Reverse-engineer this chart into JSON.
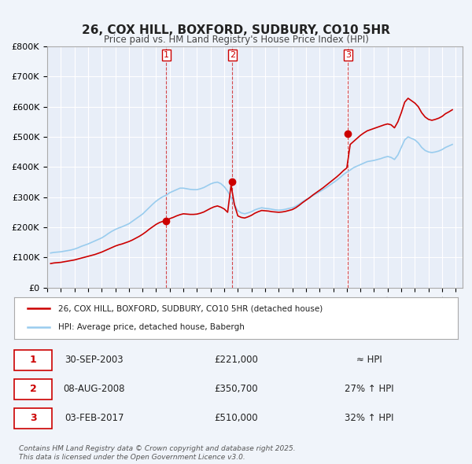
{
  "title": "26, COX HILL, BOXFORD, SUDBURY, CO10 5HR",
  "subtitle": "Price paid vs. HM Land Registry's House Price Index (HPI)",
  "bg_color": "#f0f4fa",
  "plot_bg_color": "#e8eef8",
  "grid_color": "#ffffff",
  "red_color": "#cc0000",
  "blue_color": "#99ccee",
  "xlabel": "",
  "ylabel": "",
  "ylim": [
    0,
    800000
  ],
  "yticks": [
    0,
    100000,
    200000,
    300000,
    400000,
    500000,
    600000,
    700000,
    800000
  ],
  "ytick_labels": [
    "£0",
    "£100K",
    "£200K",
    "£300K",
    "£400K",
    "£500K",
    "£600K",
    "£700K",
    "£800K"
  ],
  "xlim_start": 1995.0,
  "xlim_end": 2025.5,
  "xticks": [
    1995,
    1996,
    1997,
    1998,
    1999,
    2000,
    2001,
    2002,
    2003,
    2004,
    2005,
    2006,
    2007,
    2008,
    2009,
    2010,
    2011,
    2012,
    2013,
    2014,
    2015,
    2016,
    2017,
    2018,
    2019,
    2020,
    2021,
    2022,
    2023,
    2024,
    2025
  ],
  "sale_dates": [
    2003.747,
    2008.594,
    2017.089
  ],
  "sale_prices": [
    221000,
    350700,
    510000
  ],
  "sale_labels": [
    "1",
    "2",
    "3"
  ],
  "legend_entries": [
    "26, COX HILL, BOXFORD, SUDBURY, CO10 5HR (detached house)",
    "HPI: Average price, detached house, Babergh"
  ],
  "table_rows": [
    [
      "1",
      "30-SEP-2003",
      "£221,000",
      "≈ HPI"
    ],
    [
      "2",
      "08-AUG-2008",
      "£350,700",
      "27% ↑ HPI"
    ],
    [
      "3",
      "03-FEB-2017",
      "£510,000",
      "32% ↑ HPI"
    ]
  ],
  "footer": "Contains HM Land Registry data © Crown copyright and database right 2025.\nThis data is licensed under the Open Government Licence v3.0.",
  "hpi_series": {
    "dates": [
      1995.25,
      1995.5,
      1995.75,
      1996.0,
      1996.25,
      1996.5,
      1996.75,
      1997.0,
      1997.25,
      1997.5,
      1997.75,
      1998.0,
      1998.25,
      1998.5,
      1998.75,
      1999.0,
      1999.25,
      1999.5,
      1999.75,
      2000.0,
      2000.25,
      2000.5,
      2000.75,
      2001.0,
      2001.25,
      2001.5,
      2001.75,
      2002.0,
      2002.25,
      2002.5,
      2002.75,
      2003.0,
      2003.25,
      2003.5,
      2003.75,
      2004.0,
      2004.25,
      2004.5,
      2004.75,
      2005.0,
      2005.25,
      2005.5,
      2005.75,
      2006.0,
      2006.25,
      2006.5,
      2006.75,
      2007.0,
      2007.25,
      2007.5,
      2007.75,
      2008.0,
      2008.25,
      2008.5,
      2008.75,
      2009.0,
      2009.25,
      2009.5,
      2009.75,
      2010.0,
      2010.25,
      2010.5,
      2010.75,
      2011.0,
      2011.25,
      2011.5,
      2011.75,
      2012.0,
      2012.25,
      2012.5,
      2012.75,
      2013.0,
      2013.25,
      2013.5,
      2013.75,
      2014.0,
      2014.25,
      2014.5,
      2014.75,
      2015.0,
      2015.25,
      2015.5,
      2015.75,
      2016.0,
      2016.25,
      2016.5,
      2016.75,
      2017.0,
      2017.25,
      2017.5,
      2017.75,
      2018.0,
      2018.25,
      2018.5,
      2018.75,
      2019.0,
      2019.25,
      2019.5,
      2019.75,
      2020.0,
      2020.25,
      2020.5,
      2020.75,
      2021.0,
      2021.25,
      2021.5,
      2021.75,
      2022.0,
      2022.25,
      2022.5,
      2022.75,
      2023.0,
      2023.25,
      2023.5,
      2023.75,
      2024.0,
      2024.25,
      2024.5,
      2024.75
    ],
    "values": [
      115000,
      117000,
      118000,
      119000,
      121000,
      123000,
      125000,
      128000,
      132000,
      137000,
      141000,
      145000,
      150000,
      155000,
      160000,
      165000,
      172000,
      180000,
      187000,
      193000,
      198000,
      202000,
      207000,
      212000,
      220000,
      228000,
      236000,
      244000,
      255000,
      266000,
      277000,
      287000,
      295000,
      302000,
      307000,
      315000,
      320000,
      325000,
      330000,
      330000,
      328000,
      326000,
      325000,
      325000,
      328000,
      332000,
      338000,
      344000,
      348000,
      350000,
      345000,
      335000,
      320000,
      300000,
      275000,
      255000,
      248000,
      245000,
      248000,
      252000,
      258000,
      262000,
      265000,
      263000,
      262000,
      260000,
      258000,
      257000,
      258000,
      260000,
      263000,
      265000,
      270000,
      277000,
      285000,
      292000,
      298000,
      305000,
      312000,
      318000,
      325000,
      332000,
      340000,
      348000,
      356000,
      365000,
      375000,
      383000,
      390000,
      398000,
      403000,
      408000,
      413000,
      418000,
      420000,
      422000,
      425000,
      428000,
      432000,
      435000,
      432000,
      425000,
      440000,
      465000,
      490000,
      500000,
      495000,
      490000,
      480000,
      465000,
      455000,
      450000,
      448000,
      450000,
      453000,
      458000,
      465000,
      470000,
      475000
    ]
  },
  "price_series": {
    "dates": [
      1995.25,
      1995.5,
      1995.75,
      1996.0,
      1996.25,
      1996.5,
      1996.75,
      1997.0,
      1997.25,
      1997.5,
      1997.75,
      1998.0,
      1998.25,
      1998.5,
      1998.75,
      1999.0,
      1999.25,
      1999.5,
      1999.75,
      2000.0,
      2000.25,
      2000.5,
      2000.75,
      2001.0,
      2001.25,
      2001.5,
      2001.75,
      2002.0,
      2002.25,
      2002.5,
      2002.75,
      2003.0,
      2003.25,
      2003.5,
      2003.75,
      2004.0,
      2004.25,
      2004.5,
      2004.75,
      2005.0,
      2005.25,
      2005.5,
      2005.75,
      2006.0,
      2006.25,
      2006.5,
      2006.75,
      2007.0,
      2007.25,
      2007.5,
      2007.75,
      2008.0,
      2008.25,
      2008.5,
      2008.75,
      2009.0,
      2009.25,
      2009.5,
      2009.75,
      2010.0,
      2010.25,
      2010.5,
      2010.75,
      2011.0,
      2011.25,
      2011.5,
      2011.75,
      2012.0,
      2012.25,
      2012.5,
      2012.75,
      2013.0,
      2013.25,
      2013.5,
      2013.75,
      2014.0,
      2014.25,
      2014.5,
      2014.75,
      2015.0,
      2015.25,
      2015.5,
      2015.75,
      2016.0,
      2016.25,
      2016.5,
      2016.75,
      2017.0,
      2017.25,
      2017.5,
      2017.75,
      2018.0,
      2018.25,
      2018.5,
      2018.75,
      2019.0,
      2019.25,
      2019.5,
      2019.75,
      2020.0,
      2020.25,
      2020.5,
      2020.75,
      2021.0,
      2021.25,
      2021.5,
      2021.75,
      2022.0,
      2022.25,
      2022.5,
      2022.75,
      2023.0,
      2023.25,
      2023.5,
      2023.75,
      2024.0,
      2024.25,
      2024.5,
      2024.75
    ],
    "values": [
      80000,
      82000,
      83000,
      84000,
      86000,
      88000,
      90000,
      92000,
      95000,
      98000,
      101000,
      104000,
      107000,
      110000,
      114000,
      118000,
      123000,
      128000,
      133000,
      138000,
      142000,
      145000,
      149000,
      153000,
      158000,
      164000,
      170000,
      177000,
      185000,
      194000,
      202000,
      210000,
      216000,
      220000,
      223000,
      229000,
      233000,
      238000,
      242000,
      245000,
      244000,
      243000,
      243000,
      244000,
      247000,
      251000,
      257000,
      263000,
      268000,
      271000,
      267000,
      261000,
      250000,
      340000,
      275000,
      238000,
      233000,
      231000,
      235000,
      240000,
      247000,
      252000,
      256000,
      255000,
      254000,
      252000,
      251000,
      250000,
      251000,
      253000,
      256000,
      259000,
      265000,
      273000,
      282000,
      290000,
      298000,
      307000,
      315000,
      323000,
      331000,
      340000,
      349000,
      358000,
      367000,
      377000,
      388000,
      397000,
      475000,
      485000,
      495000,
      505000,
      513000,
      520000,
      524000,
      528000,
      532000,
      536000,
      540000,
      543000,
      540000,
      530000,
      550000,
      580000,
      615000,
      628000,
      620000,
      612000,
      600000,
      580000,
      566000,
      558000,
      555000,
      558000,
      562000,
      568000,
      577000,
      583000,
      590000
    ]
  }
}
